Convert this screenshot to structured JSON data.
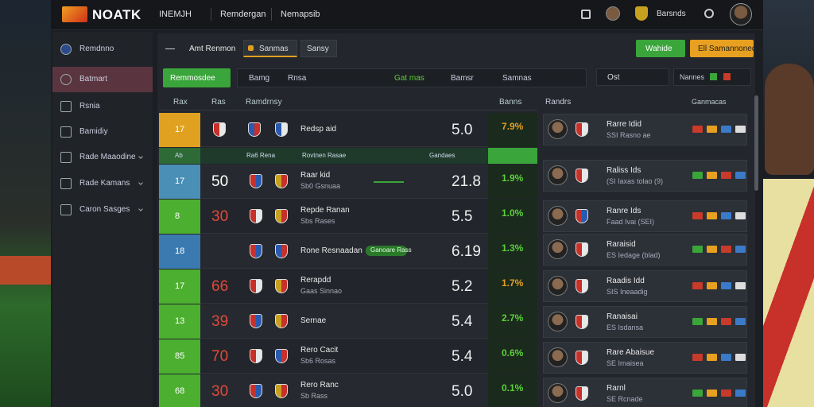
{
  "header": {
    "logo": "NOATK",
    "nav": [
      "INEMJH",
      "Remdergan",
      "Nemapsib"
    ],
    "user": "Barsnds"
  },
  "sidebar": {
    "items": [
      "Remdnno",
      "Batmart",
      "Rsnia",
      "Bamidiy",
      "Rade Maaodine",
      "Rade Kamans",
      "Caron Sasges"
    ]
  },
  "toolbar": {
    "title": "Amt Renmon",
    "tabs": [
      "Sanmas",
      "Sansy"
    ],
    "buttons": [
      "Wahide",
      "Ell Samannoned"
    ]
  },
  "filters": {
    "primary": "Remmosdee",
    "items": [
      "Bamg",
      "Rnsa",
      "Gat mas",
      "Bamsr",
      "Samnas"
    ],
    "search": "Ost",
    "toggle": "Nannes"
  },
  "table": {
    "columns": [
      "Rax",
      "Ras",
      "Ramdrnsy",
      "Banns"
    ],
    "subheader": [
      "Ab",
      "Ra6 Rena",
      "Rovtnen Rasae",
      "Gandaes"
    ],
    "rows": [
      {
        "rank": "17",
        "color": "#e0a020",
        "match": "Redsp aid",
        "odds": "5.0",
        "pct": "7.9%",
        "pct_color": "#e0a020"
      },
      {
        "rank": "17",
        "color": "#4a8fb5",
        "score": "50",
        "score_color": "#ffffff",
        "match": "Raar kid",
        "sub": "Sb0 Gsnuaa",
        "odds": "21.8",
        "pct": "1.9%",
        "pct_color": "#5ccf3a"
      },
      {
        "rank": "8",
        "color": "#4caf30",
        "score": "30",
        "score_color": "#e04a3a",
        "match": "Repde Ranan",
        "sub": "Sbs Rases",
        "odds": "5.5",
        "pct": "1.0%",
        "pct_color": "#5ccf3a"
      },
      {
        "rank": "18",
        "color": "#3a7ab0",
        "match": "Rone Resnaadan",
        "tag": "Ganoare Rass",
        "odds": "6.19",
        "pct": "1.3%",
        "pct_color": "#5ccf3a"
      },
      {
        "rank": "17",
        "color": "#4caf30",
        "score": "66",
        "score_color": "#e04a3a",
        "match": "Rerapdd",
        "sub": "Gaas Sinnao",
        "odds": "5.2",
        "pct": "1.7%",
        "pct_color": "#e0a020"
      },
      {
        "rank": "13",
        "color": "#4caf30",
        "score": "39",
        "score_color": "#e04a3a",
        "match": "Sernae",
        "odds": "5.4",
        "pct": "2.7%",
        "pct_color": "#5ccf3a"
      },
      {
        "rank": "85",
        "color": "#4caf30",
        "score": "70",
        "score_color": "#e04a3a",
        "match": "Rero Cacit",
        "sub": "Sb6 Rosas",
        "odds": "5.4",
        "pct": "0.6%",
        "pct_color": "#5ccf3a"
      },
      {
        "rank": "68",
        "color": "#4caf30",
        "score": "30",
        "score_color": "#e04a3a",
        "match": "Rero Ranc",
        "sub": "Sb Rass",
        "odds": "5.0",
        "pct": "0.1%",
        "pct_color": "#5ccf3a"
      }
    ]
  },
  "panel": {
    "columns": [
      "Randrs",
      "Ganmacas"
    ],
    "items": [
      {
        "name": "Rarre Idid",
        "sub": "SSI Rasno ae"
      },
      {
        "name": "Raliss Ids",
        "sub": "(SI Iaxas tolao (9)"
      },
      {
        "name": "Ranre Ids",
        "sub": "Faad Ivai (SEI)"
      },
      {
        "name": "Raraisid",
        "sub": "ES Iedage (blad)"
      },
      {
        "name": "Raadis Idd",
        "sub": "SIS Ineaadig"
      },
      {
        "name": "Ranaisai",
        "sub": "ES Isdansa"
      },
      {
        "name": "Rare Abaisue",
        "sub": "SE Irnaisea"
      },
      {
        "name": "Rarnl",
        "sub": "SE Rcnade"
      }
    ]
  }
}
